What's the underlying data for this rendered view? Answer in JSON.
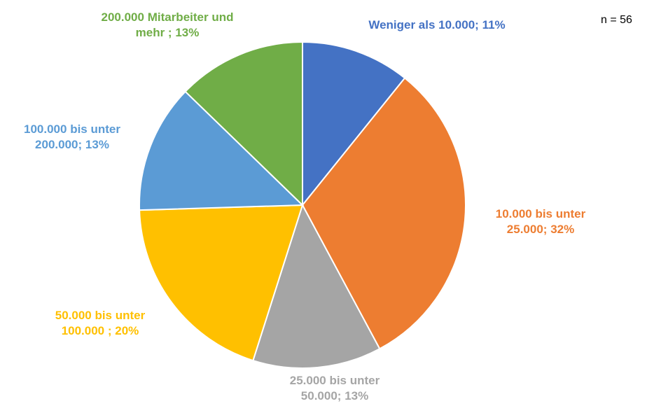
{
  "chart_data": {
    "type": "pie",
    "note": "n = 56",
    "categories": [
      "Weniger als 10.000;",
      "10.000  bis unter 25.000;",
      "25.000 bis unter 50.000;",
      "50.000 bis unter 100.000 ;",
      "100.000 bis unter 200.000;",
      "200.000 Mitarbeiter und mehr ;"
    ],
    "values": [
      11,
      32,
      13,
      20,
      13,
      13
    ],
    "value_labels": [
      "11%",
      "32%",
      "13%",
      "20%",
      "13%",
      "13%"
    ],
    "colors": [
      "#4472c4",
      "#ed7d31",
      "#a5a5a5",
      "#ffc000",
      "#5b9bd5",
      "#70ad47"
    ]
  }
}
